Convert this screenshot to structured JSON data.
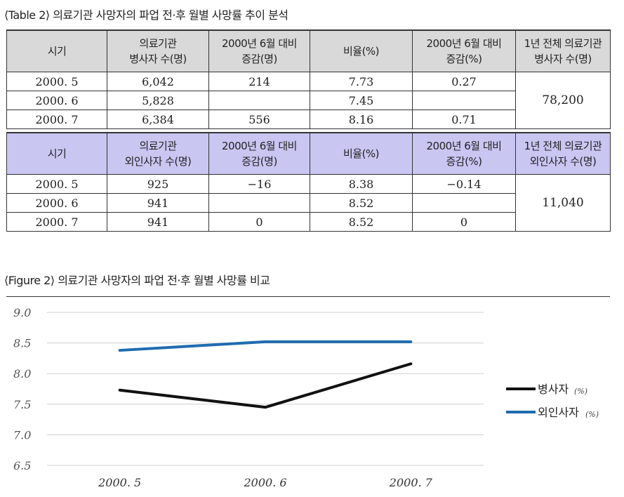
{
  "table": {
    "caption": "⟨Table 2⟩ 의료기관 사망자의 파업 전·후 월별 사망률 추이 분석",
    "headers_hospital": [
      [
        "시기"
      ],
      [
        "의료기관",
        "병사자 수(명)"
      ],
      [
        "2000년 6월 대비",
        "증감(명)"
      ],
      [
        "비율(%)"
      ],
      [
        "2000년 6월 대비",
        "증감(%)"
      ],
      [
        "1년 전체 의료기관",
        "병사자 수(명)"
      ]
    ],
    "rows_hospital": [
      [
        "2000. 5",
        "6,042",
        "214",
        "7.73",
        "0.27"
      ],
      [
        "2000. 6",
        "5,828",
        "",
        "7.45",
        ""
      ],
      [
        "2000. 7",
        "6,384",
        "556",
        "8.16",
        "0.71"
      ]
    ],
    "total_hospital": "78,200",
    "headers_external": [
      [
        "시기"
      ],
      [
        "의료기관",
        "외인사자 수(명)"
      ],
      [
        "2000년 6월 대비",
        "증감(명)"
      ],
      [
        "비율(%)"
      ],
      [
        "2000년 6월 대비",
        "증감(%)"
      ],
      [
        "1년 전체 의료기관",
        "외인사자 수(명)"
      ]
    ],
    "rows_external": [
      [
        "2000. 5",
        "925",
        "−16",
        "8.38",
        "−0.14"
      ],
      [
        "2000. 6",
        "941",
        "",
        "8.52",
        ""
      ],
      [
        "2000. 7",
        "941",
        "0",
        "8.52",
        "0"
      ]
    ],
    "total_external": "11,040"
  },
  "figure": {
    "caption": "⟨Figure 2⟩ 의료기관 사망자의 파업 전·후 월별 사망률 비교"
  },
  "chart_data": {
    "type": "line",
    "categories": [
      "2000. 5",
      "2000. 6",
      "2000. 7"
    ],
    "series": [
      {
        "name": "병사자",
        "unit": "(%)",
        "values": [
          7.73,
          7.45,
          8.16
        ],
        "color": "#111111"
      },
      {
        "name": "외인사자",
        "unit": "(%)",
        "values": [
          8.38,
          8.52,
          8.52
        ],
        "color": "#1f6cb0"
      }
    ],
    "ylim": [
      6.5,
      9.0
    ],
    "yticks": [
      "6.5",
      "7.0",
      "7.5",
      "8.0",
      "8.5",
      "9.0"
    ],
    "grid": true,
    "legend_position": "right",
    "gridline_color": "#cfcfcf"
  }
}
